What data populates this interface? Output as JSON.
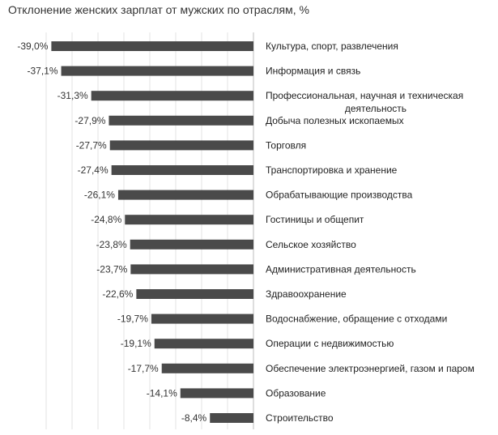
{
  "chart_data": {
    "type": "bar",
    "orientation": "horizontal",
    "title": "Отклонение женских зарплат от мужских по отраслям, %",
    "xlabel": "",
    "ylabel": "",
    "xlim": [
      -42,
      0
    ],
    "grid": true,
    "bar_color": "#4a4a4a",
    "categories": [
      [
        "Культура, спорт, развлечения"
      ],
      [
        "Информация и связь"
      ],
      [
        "Профессиональная, научная и техническая",
        "деятельность"
      ],
      [
        "Добыча полезных ископаемых"
      ],
      [
        "Торговля"
      ],
      [
        "Транспортировка и хранение"
      ],
      [
        "Обрабатывающие производства"
      ],
      [
        "Гостиницы и общепит"
      ],
      [
        "Сельское хозяйство"
      ],
      [
        "Административная деятельность"
      ],
      [
        "Здравоохранение"
      ],
      [
        "Водоснабжение, обращение с отходами"
      ],
      [
        "Операции с недвижимостью"
      ],
      [
        "Обеспечение электроэнергией, газом и паром"
      ],
      [
        "Образование"
      ],
      [
        "Строительство"
      ]
    ],
    "values": [
      -39.0,
      -37.1,
      -31.3,
      -27.9,
      -27.7,
      -27.4,
      -26.1,
      -24.8,
      -23.8,
      -23.7,
      -22.6,
      -19.7,
      -19.1,
      -17.7,
      -14.1,
      -8.4
    ],
    "data_labels": [
      "-39,0%",
      "-37,1%",
      "-31,3%",
      "-27,9%",
      "-27,7%",
      "-27,4%",
      "-26,1%",
      "-24,8%",
      "-23,8%",
      "-23,7%",
      "-22,6%",
      "-19,7%",
      "-19,1%",
      "-17,7%",
      "-14,1%",
      "-8,4%"
    ]
  }
}
